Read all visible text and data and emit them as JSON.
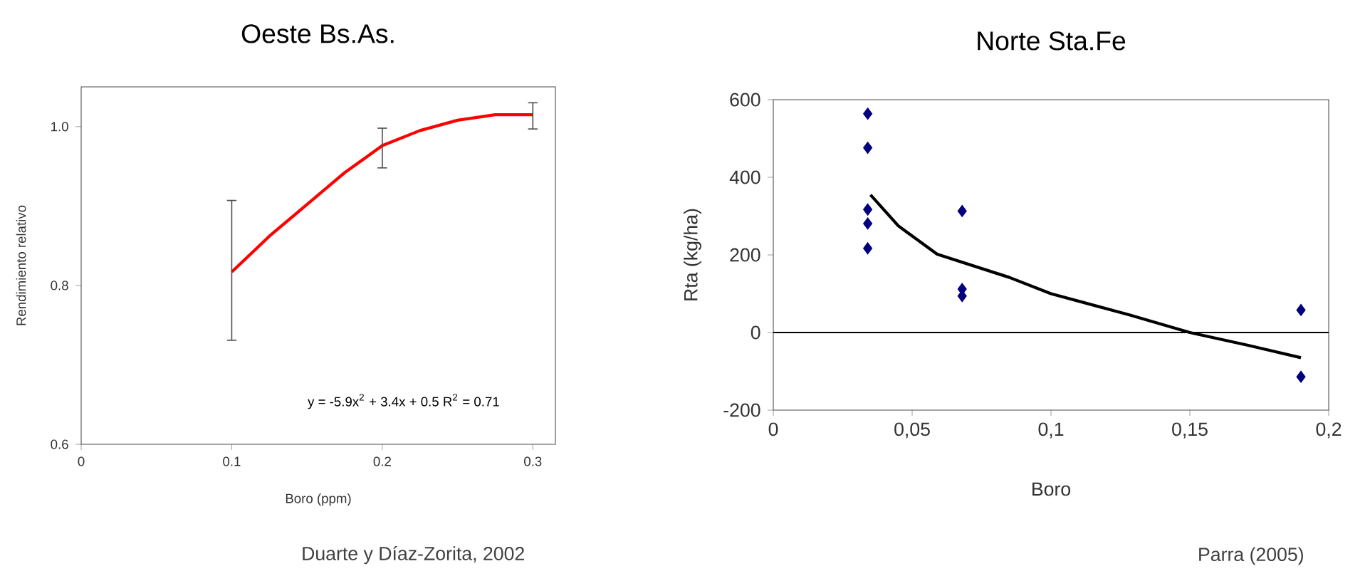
{
  "chart_data": [
    {
      "type": "line",
      "title": "Oeste Bs.As.",
      "xlabel": "Boro (ppm)",
      "ylabel": "Rendimiento relativo",
      "x": [
        0.1,
        0.125,
        0.15,
        0.175,
        0.2,
        0.225,
        0.25,
        0.275,
        0.3
      ],
      "series": [
        {
          "color": "#ff0000",
          "values": [
            0.817,
            0.862,
            0.902,
            0.942,
            0.976,
            0.995,
            1.008,
            1.015,
            1.015
          ],
          "errors": [
            [
              0.731,
              0.907
            ],
            null,
            null,
            null,
            [
              0.948,
              0.998
            ],
            null,
            null,
            null,
            [
              0.997,
              1.03
            ]
          ]
        }
      ],
      "xlim": [
        0,
        0.315
      ],
      "ylim": [
        0.6,
        1.05
      ],
      "xticks": [
        0,
        0.1,
        0.2,
        0.3
      ],
      "yticks": [
        0.6,
        0.8,
        {
          "value": 1,
          "label": "1.0"
        }
      ],
      "marker": "none",
      "annotations": [
        "y = -5.9x$^{2}$ + 3.4x + 0.5 R$^{2}$ = 0.71",
        "Duarte y Díaz-Zorita, 2002"
      ]
    },
    {
      "type": "scatter",
      "title": "Norte Sta.Fe",
      "xlabel": "Boro",
      "ylabel": "Rta  (kg/ha)",
      "series": [
        {
          "type": "scatter",
          "color": "#00007f",
          "marker": "diamond",
          "x": [
            0.034,
            0.034,
            0.034,
            0.034,
            0.034,
            0.068,
            0.068,
            0.068,
            0.19,
            0.19
          ],
          "values": [
            564,
            476,
            317,
            281,
            217,
            313,
            112,
            94,
            58,
            -114
          ]
        },
        {
          "type": "line",
          "color": "#000000",
          "marker": "none",
          "x": [
            0.035,
            0.045,
            0.059,
            0.085,
            0.1,
            0.128,
            0.15,
            0.171,
            0.19
          ],
          "values": [
            355,
            275,
            202,
            142,
            100,
            46,
            0,
            -33,
            -65
          ]
        }
      ],
      "xlim": [
        0,
        0.2
      ],
      "ylim": [
        -200,
        600
      ],
      "xticks": [
        0,
        {
          "value": 0.05,
          "label": "0,05"
        },
        {
          "value": 0.1,
          "label": "0,1"
        },
        {
          "value": 0.15,
          "label": "0,15"
        },
        {
          "value": 0.2,
          "label": "0,2"
        }
      ],
      "yticks": [
        -200,
        0,
        200,
        400,
        600
      ],
      "ref_lines": [
        {
          "axis": "y",
          "value": 0,
          "color": "#000000"
        }
      ],
      "annotations": [
        "Parra (2005)"
      ]
    }
  ]
}
